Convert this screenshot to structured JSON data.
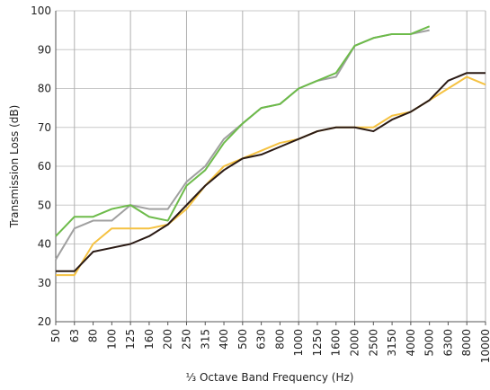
{
  "chart_data": {
    "type": "line",
    "x_label": "⅓  Octave Band Frequency (Hz)",
    "y_label": "Transmission Loss (dB)",
    "categories": [
      "50",
      "63",
      "80",
      "100",
      "125",
      "160",
      "200",
      "250",
      "315",
      "400",
      "500",
      "630",
      "800",
      "1000",
      "1250",
      "1600",
      "2000",
      "2500",
      "3150",
      "4000",
      "5000",
      "6300",
      "8000",
      "10000"
    ],
    "series": [
      {
        "color": "#a0a0a0",
        "values": [
          36,
          44,
          46,
          46,
          50,
          49,
          49,
          56,
          60,
          67,
          71,
          75,
          76,
          80,
          82,
          83,
          91,
          93,
          94,
          94,
          95,
          null,
          null,
          null
        ]
      },
      {
        "color": "#6dbb4a",
        "values": [
          42,
          47,
          47,
          49,
          50,
          47,
          46,
          55,
          59,
          66,
          71,
          75,
          76,
          80,
          82,
          84,
          91,
          93,
          94,
          94,
          96,
          null,
          null,
          null
        ]
      },
      {
        "color": "#f5c242",
        "values": [
          32,
          32,
          40,
          44,
          44,
          44,
          45,
          49,
          55,
          60,
          62,
          64,
          66,
          67,
          69,
          70,
          70,
          70,
          73,
          74,
          77,
          80,
          83,
          81
        ]
      },
      {
        "color": "#2a1a14",
        "values": [
          33,
          33,
          38,
          39,
          40,
          42,
          45,
          50,
          55,
          59,
          62,
          63,
          65,
          67,
          69,
          70,
          70,
          69,
          72,
          74,
          77,
          82,
          84,
          84
        ]
      }
    ],
    "ylim": [
      20,
      100
    ],
    "yticks": [
      20,
      30,
      40,
      50,
      60,
      70,
      80,
      90,
      100
    ],
    "grid": true
  }
}
